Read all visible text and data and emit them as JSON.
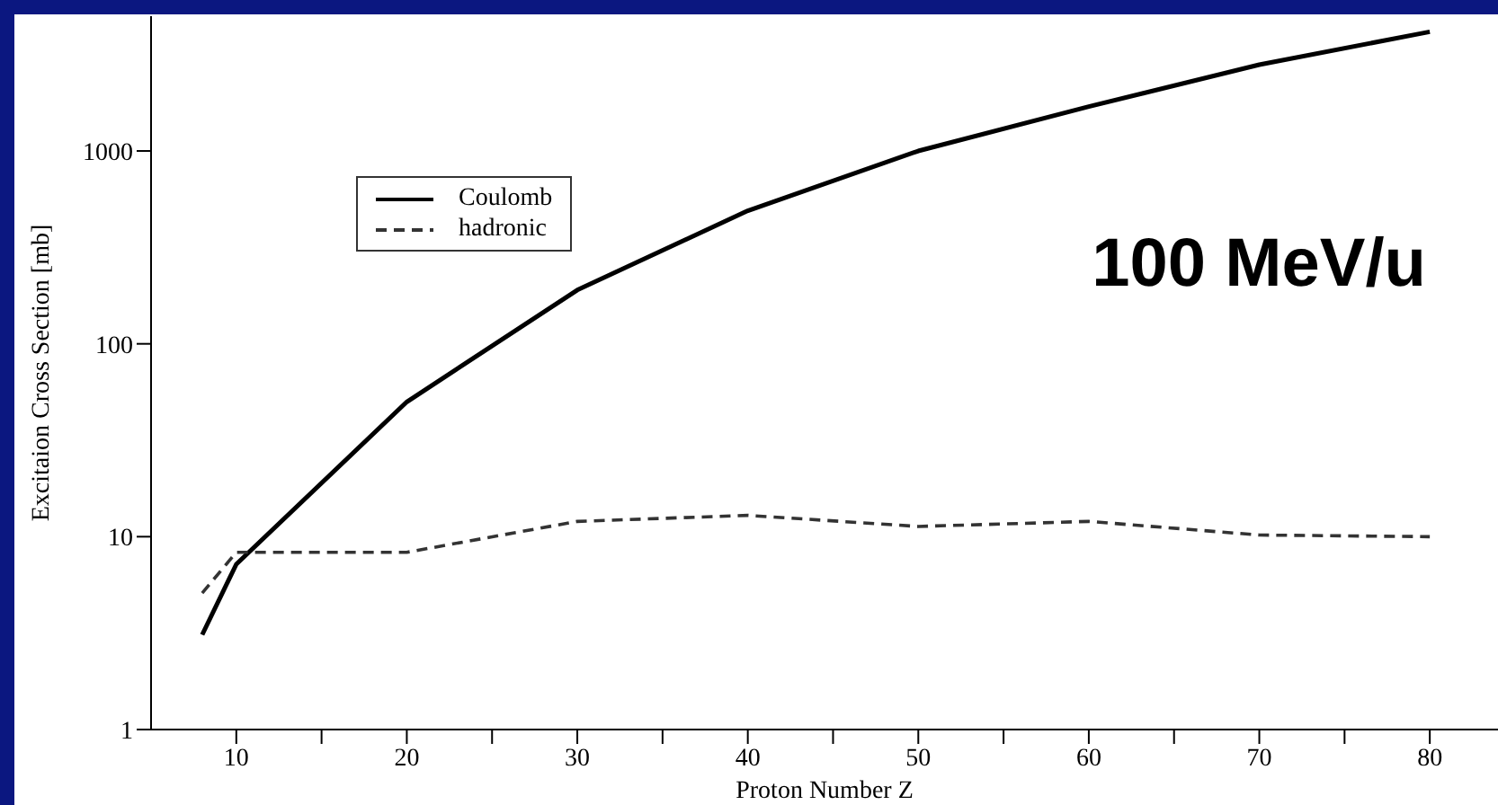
{
  "chart_data": {
    "type": "line",
    "xlabel": "Proton Number Z",
    "ylabel": "Excitaion Cross Section [mb]",
    "annotations": [
      "100 MeV/u"
    ],
    "log": "y",
    "legend": "top left",
    "marker": "none",
    "xlim": [
      5,
      84
    ],
    "xticks": [
      10,
      {
        "value": 15,
        "label": null
      },
      20,
      {
        "value": 25,
        "label": null
      },
      30,
      {
        "value": 35,
        "label": null
      },
      40,
      {
        "value": 45,
        "label": null
      },
      50,
      {
        "value": 55,
        "label": null
      },
      60,
      {
        "value": 65,
        "label": null
      },
      70,
      {
        "value": 75,
        "label": null
      },
      80
    ],
    "ylim": [
      1,
      5000
    ],
    "yticks": [
      1,
      10,
      100,
      1000
    ],
    "x": [
      8,
      10,
      20,
      30,
      40,
      50,
      60,
      70,
      80
    ],
    "series": [
      {
        "name": "Coulomb",
        "color": "#000000",
        "line_style": "solid",
        "values": [
          3.1,
          7.2,
          50,
          190,
          490,
          1000,
          1700,
          2800,
          4150
        ]
      },
      {
        "name": "hadronic",
        "color": "#333333",
        "line_style": "dashed",
        "values": [
          5.1,
          8.3,
          8.3,
          12,
          12.9,
          11.3,
          12,
          10.2,
          10
        ]
      }
    ]
  }
}
